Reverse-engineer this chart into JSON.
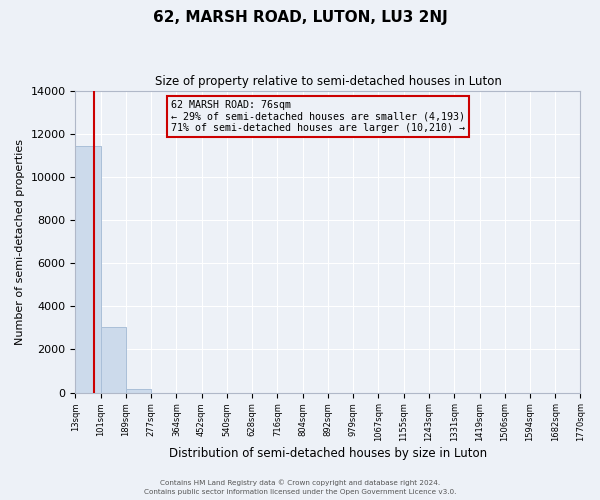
{
  "title": "62, MARSH ROAD, LUTON, LU3 2NJ",
  "subtitle": "Size of property relative to semi-detached houses in Luton",
  "xlabel": "Distribution of semi-detached houses by size in Luton",
  "ylabel": "Number of semi-detached properties",
  "bar_color": "#ccdaeb",
  "bar_edge_color": "#aabfd8",
  "background_color": "#edf1f7",
  "grid_color": "#ffffff",
  "property_line_color": "#cc0000",
  "annotation_box_color": "#cc0000",
  "bin_edges": [
    13,
    101,
    189,
    277,
    364,
    452,
    540,
    628,
    716,
    804,
    892,
    979,
    1067,
    1155,
    1243,
    1331,
    1419,
    1506,
    1594,
    1682,
    1770
  ],
  "bin_counts": [
    11450,
    3050,
    150,
    0,
    0,
    0,
    0,
    0,
    0,
    0,
    0,
    0,
    0,
    0,
    0,
    0,
    0,
    0,
    0,
    0
  ],
  "property_size": 76,
  "property_label": "62 MARSH ROAD: 76sqm",
  "pct_smaller": 29,
  "num_smaller": 4193,
  "pct_larger": 71,
  "num_larger": 10210,
  "ylim": [
    0,
    14000
  ],
  "yticks": [
    0,
    2000,
    4000,
    6000,
    8000,
    10000,
    12000,
    14000
  ],
  "tick_labels": [
    "13sqm",
    "101sqm",
    "189sqm",
    "277sqm",
    "364sqm",
    "452sqm",
    "540sqm",
    "628sqm",
    "716sqm",
    "804sqm",
    "892sqm",
    "979sqm",
    "1067sqm",
    "1155sqm",
    "1243sqm",
    "1331sqm",
    "1419sqm",
    "1506sqm",
    "1594sqm",
    "1682sqm",
    "1770sqm"
  ],
  "footer_line1": "Contains HM Land Registry data © Crown copyright and database right 2024.",
  "footer_line2": "Contains public sector information licensed under the Open Government Licence v3.0."
}
